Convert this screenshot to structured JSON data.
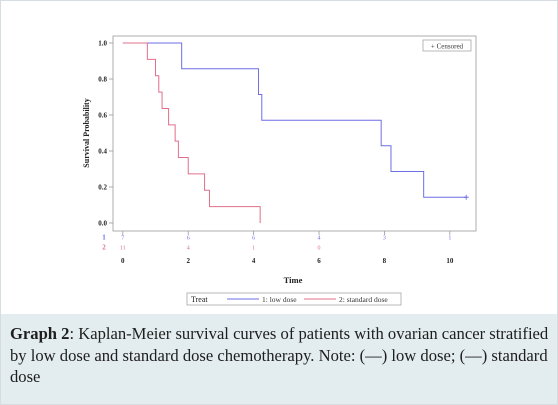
{
  "chart_data": {
    "type": "line",
    "title": "",
    "xlabel": "Time",
    "ylabel": "Survival Probability",
    "xlim": [
      -0.3,
      10.8
    ],
    "ylim": [
      0,
      1.0
    ],
    "xticks": [
      "0",
      "2",
      "4",
      "6",
      "8",
      "10"
    ],
    "yticks": [
      "0.0",
      "0.2",
      "0.4",
      "0.6",
      "0.8",
      "1.0"
    ],
    "censored_label": "+ Censored",
    "legend_title": "Treat",
    "series": [
      {
        "name": "1: low dose",
        "color": "#6e6ee6",
        "steps": [
          [
            0,
            1.0
          ],
          [
            1.8,
            0.857
          ],
          [
            4.15,
            0.714
          ],
          [
            4.25,
            0.571
          ],
          [
            7.9,
            0.429
          ],
          [
            8.2,
            0.286
          ],
          [
            9.2,
            0.143
          ],
          [
            10.5,
            0.143
          ]
        ],
        "censored": [
          [
            10.5,
            0.143
          ]
        ],
        "risk_label": "1",
        "risk_counts": [
          "7",
          "6",
          "6",
          "4",
          "3",
          "1"
        ]
      },
      {
        "name": "2: standard dose",
        "color": "#e0708a",
        "steps": [
          [
            0,
            1.0
          ],
          [
            0.75,
            0.909
          ],
          [
            1.0,
            0.818
          ],
          [
            1.1,
            0.727
          ],
          [
            1.2,
            0.636
          ],
          [
            1.4,
            0.545
          ],
          [
            1.6,
            0.455
          ],
          [
            1.7,
            0.364
          ],
          [
            2.0,
            0.273
          ],
          [
            2.5,
            0.182
          ],
          [
            2.65,
            0.091
          ],
          [
            4.2,
            0.091
          ],
          [
            4.2,
            0.0
          ]
        ],
        "censored": [],
        "risk_label": "2",
        "risk_counts": [
          "11",
          "4",
          "1",
          "0",
          "",
          ""
        ]
      }
    ]
  },
  "caption": {
    "label": "Graph 2",
    "text": ": Kaplan-Meier survival curves of patients with ovarian cancer stratified by low dose and standard dose chemotherapy. Note: (—) low dose; (—) standard dose"
  }
}
